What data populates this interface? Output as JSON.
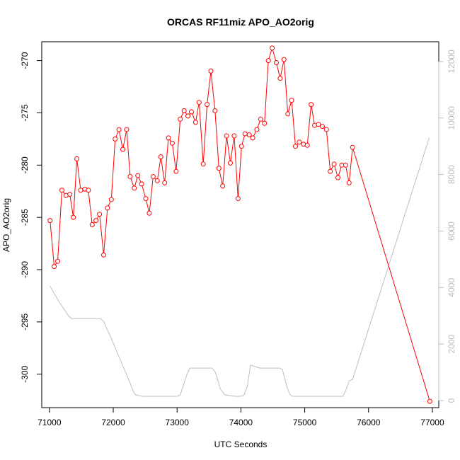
{
  "chart_data": {
    "type": "line",
    "title": "ORCAS RF11miz APO_AO2orig",
    "xlabel": "UTC Seconds",
    "ylabel": "APO_AO2orig",
    "xlim": [
      70880,
      77100
    ],
    "ylim": [
      -303.2,
      -268.2
    ],
    "y2lim": [
      -250,
      12700
    ],
    "x_ticks": [
      71000,
      72000,
      73000,
      74000,
      75000,
      76000,
      77000
    ],
    "y_ticks": [
      -300,
      -295,
      -290,
      -285,
      -280,
      -275,
      -270
    ],
    "y2_ticks": [
      0,
      2000,
      4000,
      6000,
      8000,
      10000,
      12000
    ],
    "grid": false,
    "legend": "none",
    "colors": {
      "series_primary": "#ff0000",
      "series_secondary": "#bebebe",
      "frame": "#000000",
      "right_axis": "#bbbbbb"
    },
    "series": [
      {
        "axis": "left",
        "style": "line+points",
        "color": "#ff0000",
        "x": [
          71010,
          71075,
          71130,
          71195,
          71260,
          71320,
          71375,
          71430,
          71490,
          71555,
          71610,
          71670,
          71730,
          71785,
          71850,
          71910,
          71970,
          72030,
          72090,
          72150,
          72210,
          72265,
          72330,
          72385,
          72445,
          72510,
          72565,
          72625,
          72690,
          72745,
          72805,
          72865,
          72925,
          72985,
          73050,
          73110,
          73170,
          73225,
          73290,
          73345,
          73410,
          73470,
          73530,
          73595,
          73655,
          73715,
          73775,
          73835,
          73895,
          73955,
          74010,
          74065,
          74130,
          74185,
          74250,
          74310,
          74370,
          74430,
          74490,
          74555,
          74615,
          74675,
          74735,
          74795,
          74855,
          74915,
          74980,
          75040,
          75100,
          75155,
          75215,
          75275,
          75340,
          75400,
          75460,
          75520,
          75580,
          75640,
          75695,
          75750,
          76960
        ],
        "y": [
          -285.3,
          -289.7,
          -289.2,
          -282.4,
          -282.9,
          -282.8,
          -285.0,
          -279.4,
          -282.4,
          -282.3,
          -282.4,
          -285.7,
          -285.3,
          -284.7,
          -288.6,
          -284.1,
          -283.3,
          -277.5,
          -276.6,
          -278.5,
          -276.6,
          -281.1,
          -282.2,
          -281.0,
          -281.8,
          -283.2,
          -284.6,
          -281.1,
          -281.5,
          -279.2,
          -281.7,
          -277.4,
          -277.9,
          -280.6,
          -275.6,
          -274.8,
          -275.3,
          -274.9,
          -275.9,
          -274.0,
          -279.9,
          -274.2,
          -271.0,
          -274.8,
          -280.3,
          -282.0,
          -277.2,
          -279.8,
          -277.2,
          -283.2,
          -278.2,
          -277.0,
          -277.1,
          -277.4,
          -276.6,
          -275.6,
          -276.0,
          -270.0,
          -268.8,
          -270.2,
          -271.7,
          -269.9,
          -275.1,
          -273.8,
          -278.2,
          -277.8,
          -278.0,
          -278.1,
          -274.2,
          -276.2,
          -276.1,
          -276.3,
          -276.6,
          -280.6,
          -279.9,
          -281.2,
          -280.0,
          -280.0,
          -281.7,
          -278.3,
          -302.6
        ]
      },
      {
        "axis": "right",
        "style": "line",
        "color": "#bebebe",
        "x": [
          71010,
          71150,
          71300,
          71350,
          71800,
          71850,
          71950,
          72100,
          72250,
          72320,
          72350,
          72450,
          72600,
          72800,
          73000,
          73050,
          73150,
          73200,
          73550,
          73600,
          73680,
          73750,
          73900,
          74000,
          74050,
          74100,
          74150,
          74300,
          74600,
          74650,
          74720,
          74760,
          74800,
          75000,
          75200,
          75400,
          75600,
          75650,
          75700,
          75750,
          76950
        ],
        "y": [
          4050,
          3500,
          3000,
          2900,
          2900,
          2800,
          2300,
          1500,
          700,
          300,
          200,
          150,
          150,
          150,
          150,
          200,
          900,
          1150,
          1150,
          1000,
          400,
          200,
          150,
          150,
          200,
          500,
          1250,
          1150,
          1150,
          1100,
          500,
          250,
          150,
          150,
          150,
          150,
          150,
          400,
          700,
          750,
          9300
        ]
      }
    ]
  }
}
